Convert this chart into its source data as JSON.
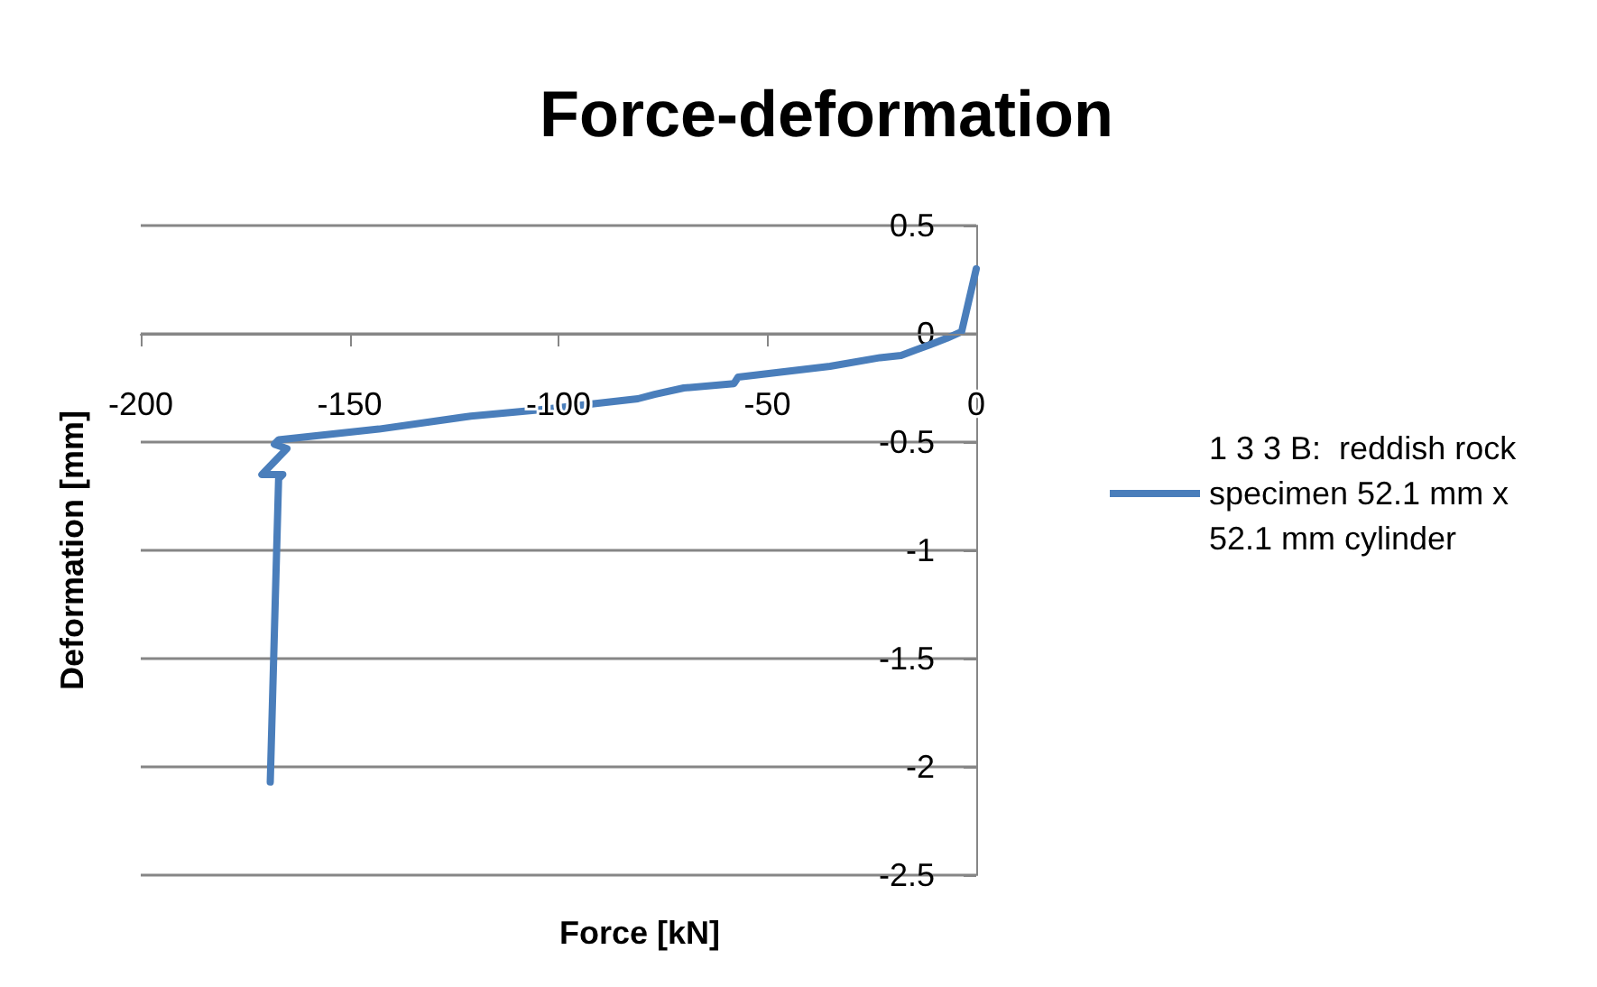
{
  "chart_data": {
    "type": "line",
    "title": "Force-deformation",
    "xlabel": "Force [kN]",
    "ylabel": "Deformation [mm]",
    "xlim": [
      -200,
      0
    ],
    "xticks": [
      -200,
      -150,
      -100,
      -50,
      0
    ],
    "ylim": [
      -2.5,
      0.5
    ],
    "yticks": [
      -2.5,
      -2,
      -1.5,
      -1,
      -0.5,
      0,
      0.5
    ],
    "grid": "y",
    "legend": "right",
    "marker": "none",
    "line_style": "solid",
    "series": [
      {
        "name": "1 3 3 B:  reddish rock specimen 52.1 mm x 52.1 mm cylinder",
        "color": "#4a7ebb",
        "x": [
          0,
          -3.5,
          -7,
          -11,
          -18,
          -23,
          -35,
          -57,
          -58,
          -70,
          -77,
          -81,
          -104,
          -121,
          -143,
          -167,
          -168,
          -165,
          -168,
          -171,
          -166,
          -167,
          -169
        ],
        "values": [
          0.3,
          0.01,
          -0.02,
          -0.05,
          -0.1,
          -0.11,
          -0.15,
          -0.2,
          -0.23,
          -0.25,
          -0.28,
          -0.3,
          -0.35,
          -0.38,
          -0.44,
          -0.49,
          -0.51,
          -0.53,
          -0.59,
          -0.65,
          -0.65,
          -0.67,
          -2.07
        ]
      }
    ]
  }
}
